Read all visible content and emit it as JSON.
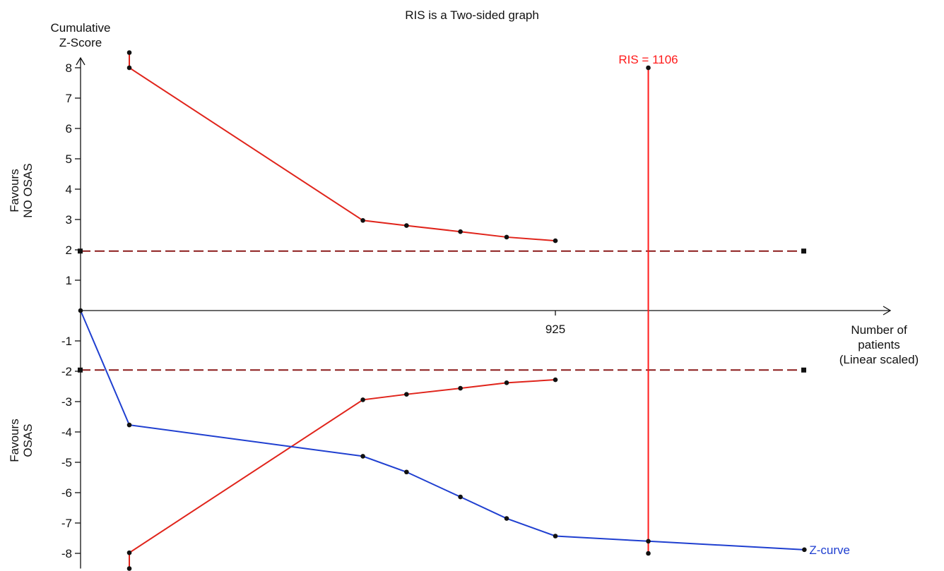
{
  "chart_data": {
    "type": "line",
    "title": "RIS is a Two-sided graph",
    "ylabel_lines": [
      "Cumulative",
      "Z-Score"
    ],
    "xlabel_lines": [
      "Number of",
      "patients",
      "(Linear scaled)"
    ],
    "favours_top_lines": [
      "Favours",
      "NO OSAS"
    ],
    "favours_bottom_lines": [
      "Favours",
      "OSAS"
    ],
    "ylim": [
      -8.5,
      8.5
    ],
    "y_ticks": [
      "8",
      "7",
      "6",
      "5",
      "4",
      "3",
      "2",
      "1",
      "-1",
      "-2",
      "-3",
      "-4",
      "-5",
      "-6",
      "-7",
      "-8"
    ],
    "y_tick_values": [
      8,
      7,
      6,
      5,
      4,
      3,
      2,
      1,
      -1,
      -2,
      -3,
      -4,
      -5,
      -6,
      -7,
      -8
    ],
    "xlim": [
      0,
      1400
    ],
    "x_ticks": [
      "925"
    ],
    "x_tick_values": [
      925
    ],
    "ris": {
      "label": "RIS = 1106",
      "value": 1106,
      "color": "#ff1a1a"
    },
    "grid": false,
    "series": [
      {
        "name": "Z-curve",
        "color": "#1f3fd0",
        "x": [
          0,
          95,
          550,
          635,
          740,
          830,
          925,
          1106,
          1410
        ],
        "y": [
          0,
          -3.77,
          -4.8,
          -5.32,
          -6.14,
          -6.85,
          -7.43,
          -7.6,
          -7.88
        ]
      }
    ],
    "boundaries": [
      {
        "role": "upper_monitoring",
        "color": "#e0241b",
        "x": [
          95,
          95,
          550,
          635,
          740,
          830,
          925
        ],
        "y": [
          8.5,
          8.0,
          2.97,
          2.8,
          2.6,
          2.42,
          2.3
        ]
      },
      {
        "role": "lower_monitoring",
        "color": "#e0241b",
        "x": [
          95,
          95,
          550,
          635,
          740,
          830,
          925
        ],
        "y": [
          -8.5,
          -7.98,
          -2.94,
          -2.76,
          -2.56,
          -2.38,
          -2.28
        ]
      }
    ],
    "conventional": [
      {
        "value": 1.96,
        "color": "#8b1a1a"
      },
      {
        "value": -1.96,
        "color": "#8b1a1a"
      }
    ],
    "legend": "inline at end of Z-curve"
  }
}
